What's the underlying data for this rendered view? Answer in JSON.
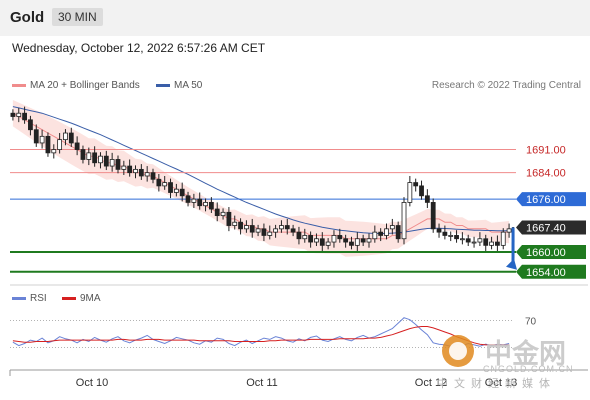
{
  "header": {
    "title": "Gold",
    "timeframe": "30 MIN"
  },
  "datetime": "Wednesday, October 12, 2022 6:57:26 AM CET",
  "legend": {
    "items": [
      {
        "label": "MA 20 + Bollinger Bands",
        "color": "#f08c8c"
      },
      {
        "label": "MA 50",
        "color": "#3a5ea8"
      }
    ],
    "credit": "Research © 2022 Trading Central"
  },
  "rsi_legend": {
    "items": [
      {
        "label": "RSI",
        "color": "#6a83d6"
      },
      {
        "label": "9MA",
        "color": "#d62020"
      }
    ]
  },
  "watermark": {
    "zh": "中金网",
    "en": "CNGOLD.COM.CN",
    "sub": "中文财经新媒体"
  },
  "chart_data": [
    {
      "type": "candlestick",
      "instrument": "Gold",
      "interval": "30 MIN",
      "x_ticks": [
        "Oct 10",
        "Oct 11",
        "Oct 12",
        "Oct 13"
      ],
      "ylim": [
        1650,
        1706
      ],
      "current_price": 1667.4,
      "levels": [
        {
          "value": 1691.0,
          "label": "1691.00",
          "kind": "resistance"
        },
        {
          "value": 1684.0,
          "label": "1684.00",
          "kind": "resistance"
        },
        {
          "value": 1676.0,
          "label": "1676.00",
          "kind": "pivot"
        },
        {
          "value": 1660.0,
          "label": "1660.00",
          "kind": "support"
        },
        {
          "value": 1654.0,
          "label": "1654.00",
          "kind": "support"
        }
      ],
      "close": [
        1701,
        1702,
        1700,
        1697,
        1693,
        1695,
        1690,
        1691,
        1694,
        1696,
        1693,
        1691,
        1688,
        1690,
        1687,
        1689,
        1686,
        1688,
        1685,
        1686,
        1684,
        1685,
        1683,
        1684,
        1682,
        1680,
        1681,
        1678,
        1679,
        1677,
        1675,
        1676,
        1674,
        1675,
        1673,
        1671,
        1672,
        1668,
        1669,
        1667,
        1668,
        1666,
        1667,
        1665,
        1666,
        1667,
        1668,
        1667,
        1666,
        1664,
        1665,
        1663,
        1664,
        1662,
        1663,
        1665,
        1664,
        1663,
        1662,
        1664,
        1663,
        1664,
        1666,
        1665,
        1667,
        1668,
        1664,
        1675,
        1681,
        1680,
        1677,
        1675,
        1667,
        1666,
        1665,
        1665,
        1664,
        1664,
        1663,
        1663,
        1664,
        1662,
        1663,
        1662,
        1666,
        1667
      ],
      "ma20": [
        1702,
        1701,
        1700,
        1699,
        1698,
        1697,
        1696,
        1695,
        1694,
        1693,
        1692,
        1691,
        1690,
        1689,
        1689,
        1688,
        1687,
        1687,
        1686,
        1686,
        1685,
        1684,
        1684,
        1683,
        1683,
        1682,
        1681,
        1680,
        1679,
        1678,
        1677,
        1676,
        1675,
        1674,
        1673,
        1672,
        1671,
        1670,
        1670,
        1669,
        1668,
        1668,
        1667,
        1667,
        1666,
        1666,
        1666,
        1666,
        1666,
        1666,
        1666,
        1665,
        1665,
        1665,
        1665,
        1665,
        1665,
        1664,
        1664,
        1664,
        1664,
        1664,
        1664,
        1664,
        1664,
        1665,
        1665,
        1666,
        1667,
        1668,
        1669,
        1670,
        1670,
        1670,
        1669,
        1669,
        1668,
        1668,
        1667,
        1667,
        1667,
        1667,
        1666,
        1666,
        1666,
        1666
      ],
      "ma50": [
        1704,
        1703.6,
        1703.2,
        1702.8,
        1702.4,
        1702,
        1701.4,
        1700.8,
        1700.2,
        1699.6,
        1699,
        1698.3,
        1697.6,
        1696.9,
        1696.2,
        1695.5,
        1694.7,
        1693.9,
        1693.1,
        1692.3,
        1691.5,
        1690.7,
        1689.9,
        1689.1,
        1688.3,
        1687.5,
        1686.7,
        1685.9,
        1685.1,
        1684.3,
        1683.5,
        1682.6,
        1681.7,
        1680.8,
        1679.9,
        1679,
        1678.2,
        1677.4,
        1676.6,
        1675.8,
        1675,
        1674.3,
        1673.6,
        1672.9,
        1672.2,
        1671.5,
        1670.9,
        1670.3,
        1669.7,
        1669.2,
        1668.7,
        1668.3,
        1667.9,
        1667.5,
        1667.2,
        1666.9,
        1666.6,
        1666.4,
        1666.2,
        1666,
        1665.8,
        1665.7,
        1665.6,
        1665.6,
        1665.6,
        1665.7,
        1665.8,
        1666,
        1666.3,
        1666.6,
        1666.9,
        1667.1,
        1667.2,
        1667.2,
        1667.1,
        1667,
        1666.9,
        1666.8,
        1666.7,
        1666.6,
        1666.6,
        1666.5,
        1666.5,
        1666.4,
        1666.4,
        1666.4
      ]
    },
    {
      "type": "line",
      "name": "RSI",
      "ylim": [
        0,
        100
      ],
      "y_ticks": [
        30,
        70
      ],
      "series": [
        {
          "name": "RSI",
          "color": "#6a83d6",
          "values": [
            38,
            33,
            36,
            41,
            39,
            44,
            37,
            40,
            46,
            43,
            41,
            37,
            42,
            39,
            45,
            41,
            38,
            43,
            46,
            40,
            37,
            41,
            44,
            48,
            42,
            39,
            36,
            40,
            45,
            43,
            41,
            37,
            35,
            40,
            38,
            44,
            42,
            36,
            33,
            38,
            41,
            36,
            40,
            44,
            42,
            46,
            44,
            40,
            38,
            43,
            40,
            45,
            47,
            41,
            39,
            43,
            46,
            42,
            40,
            45,
            48,
            44,
            46,
            50,
            54,
            58,
            66,
            74,
            71,
            64,
            56,
            49,
            37,
            35,
            34,
            32,
            35,
            33,
            36,
            34,
            32,
            35,
            33,
            35,
            34,
            36
          ]
        },
        {
          "name": "9MA",
          "color": "#d62020",
          "values": [
            40,
            39,
            38,
            38,
            39,
            39,
            39,
            40,
            41,
            41,
            41,
            41,
            41,
            41,
            41,
            41,
            41,
            41,
            42,
            42,
            41,
            41,
            41,
            42,
            42,
            42,
            41,
            41,
            41,
            41,
            41,
            41,
            40,
            40,
            40,
            40,
            40,
            40,
            39,
            39,
            39,
            39,
            39,
            39,
            40,
            40,
            41,
            41,
            41,
            41,
            41,
            42,
            42,
            42,
            42,
            42,
            43,
            43,
            43,
            43,
            43,
            44,
            44,
            45,
            47,
            49,
            52,
            55,
            58,
            60,
            61,
            61,
            59,
            56,
            53,
            50,
            46,
            43,
            40,
            37,
            35,
            34,
            34,
            34,
            34,
            34
          ]
        }
      ]
    }
  ]
}
